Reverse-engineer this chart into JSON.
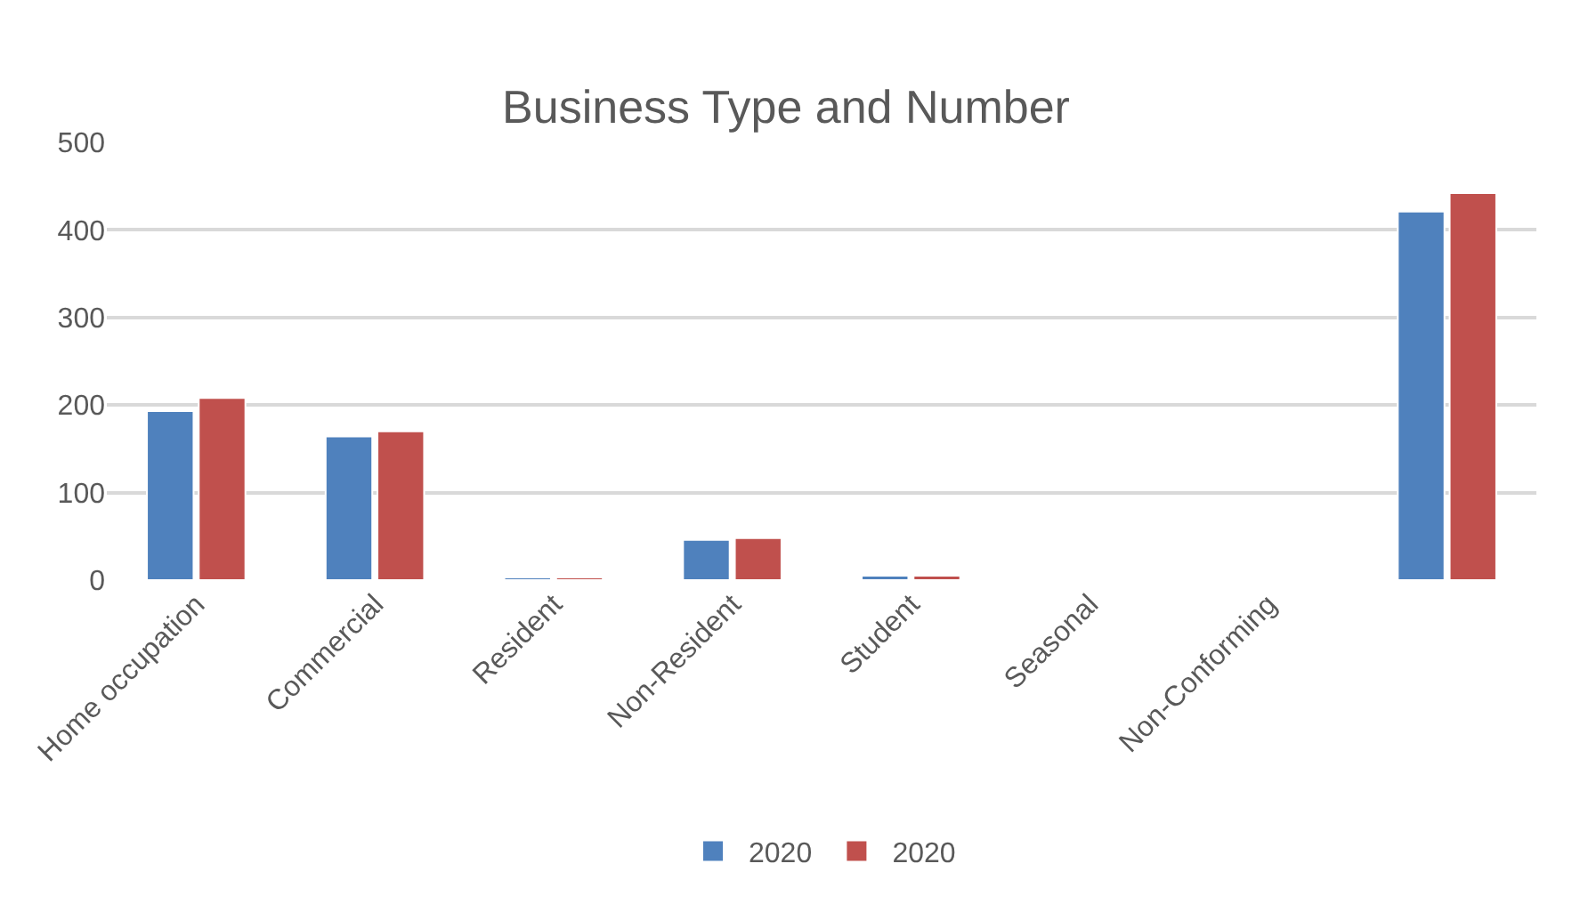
{
  "chart_data": {
    "type": "bar",
    "title": "Business Type and Number",
    "categories": [
      "Home occupation",
      "Commercial",
      "Resident",
      "Non-Resident",
      "Student",
      "Seasonal",
      "Non-Conforming",
      null
    ],
    "series": [
      {
        "name": "2020",
        "color": "#4f81bd",
        "values": [
          193,
          164,
          3,
          46,
          5,
          null,
          null,
          421
        ]
      },
      {
        "name": "2020",
        "color": "#c0504d",
        "values": [
          208,
          170,
          3,
          48,
          5,
          null,
          null,
          442
        ]
      }
    ],
    "ylim": [
      0,
      500
    ],
    "yticks": [
      0,
      100,
      200,
      300,
      400,
      500
    ],
    "grid": "y",
    "legend": "bottom"
  }
}
